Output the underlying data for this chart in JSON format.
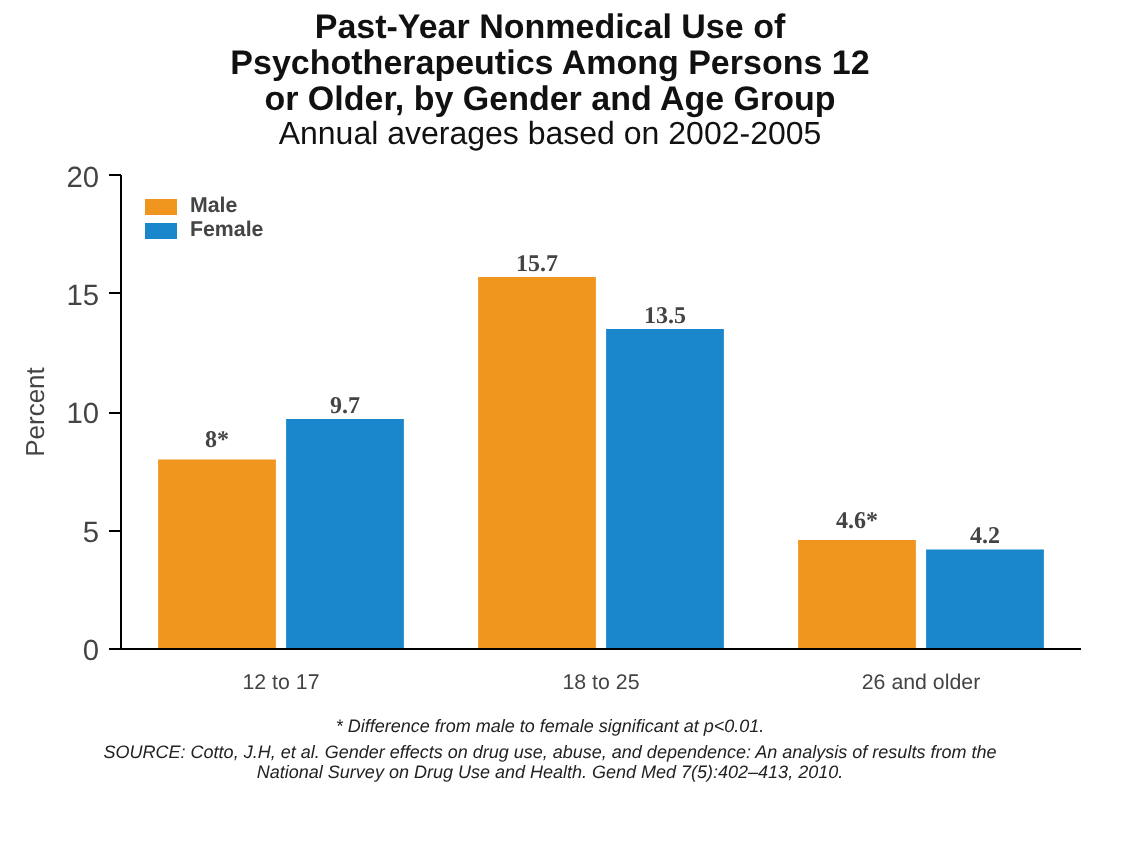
{
  "chart_data": {
    "type": "bar",
    "title": "Past-Year Nonmedical Use of Psychotherapeutics Among Persons 12 or Older, by Gender and Age Group",
    "subtitle": "Annual averages based on 2002-2005",
    "ylabel": "Percent",
    "categories": [
      "12 to 17",
      "18 to 25",
      "26 and older"
    ],
    "series": [
      {
        "name": "Male",
        "color": "#f0961e",
        "values": [
          8,
          15.7,
          4.6
        ],
        "value_labels": [
          "8*",
          "15.7",
          "4.6*"
        ]
      },
      {
        "name": "Female",
        "color": "#1a86cc",
        "values": [
          9.7,
          13.5,
          4.2
        ],
        "value_labels": [
          "9.7",
          "13.5",
          "4.2"
        ]
      }
    ],
    "ylim": [
      0,
      20
    ],
    "yticks": [
      0,
      5,
      10,
      15,
      20
    ],
    "grid": false,
    "legend": "top left",
    "annotations": [
      "* Difference from male to female significant at p<0.01.",
      "SOURCE: Cotto, J.H, et al. Gender effects on drug use, abuse, and dependence: An analysis of results from the National Survey on Drug Use and Health. Gend Med 7(5):402–413, 2010."
    ]
  }
}
